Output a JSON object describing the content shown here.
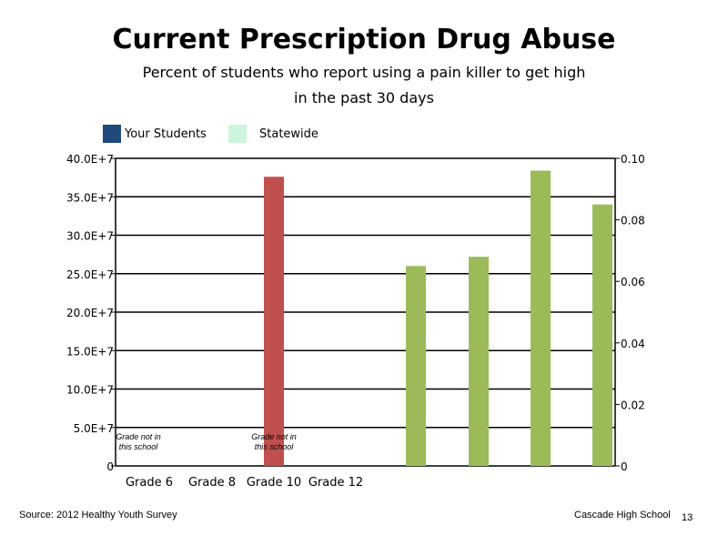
{
  "colors": {
    "your_students": "#1f497d",
    "statewide": "#ccf5dc",
    "grade10_bar": "#c0504d",
    "extra_bars": "#9bbb59"
  },
  "footer": {
    "source": "Source: 2012 Healthy Youth Survey",
    "school": "Cascade High School",
    "page": "13"
  },
  "chart_data": {
    "type": "bar",
    "title": "Current Prescription Drug Abuse",
    "subtitle_line1": "Percent of students who report using a pain killer to get high",
    "subtitle_line2": "in the past 30 days",
    "legend": [
      {
        "name": "Your Students",
        "color": "#1f497d"
      },
      {
        "name": "Statewide",
        "color": "#ccf5dc"
      }
    ],
    "legend_position": "top-left",
    "categories": [
      "Grade 6",
      "Grade 8",
      "Grade 10",
      "Grade 12"
    ],
    "grid": true,
    "y_left": {
      "ticks": [
        "0",
        "5.0E+7",
        "10.0E+7",
        "15.0E+7",
        "20.0E+7",
        "25.0E+7",
        "30.0E+7",
        "35.0E+7",
        "40.0E+7"
      ],
      "ylim": [
        0,
        400000000
      ]
    },
    "y_right": {
      "ticks": [
        "0",
        "0.02",
        "0.04",
        "0.06",
        "0.08",
        "0.10"
      ],
      "ylim": [
        0,
        0.1
      ]
    },
    "bars": [
      {
        "category": "Grade 10",
        "axis": "left",
        "value": 376000000,
        "color": "#c0504d"
      },
      {
        "category": "",
        "axis": "right",
        "value": 0.065,
        "color": "#9bbb59"
      },
      {
        "category": "",
        "axis": "right",
        "value": 0.068,
        "color": "#9bbb59"
      },
      {
        "category": "",
        "axis": "right",
        "value": 0.096,
        "color": "#9bbb59"
      },
      {
        "category": "",
        "axis": "right",
        "value": 0.085,
        "color": "#9bbb59"
      }
    ],
    "annotations": [
      {
        "category": "Grade 6",
        "line1": "Grade not in",
        "line2": "this school"
      },
      {
        "category": "Grade 10",
        "line1": "Grade not in",
        "line2": "this school"
      }
    ]
  }
}
